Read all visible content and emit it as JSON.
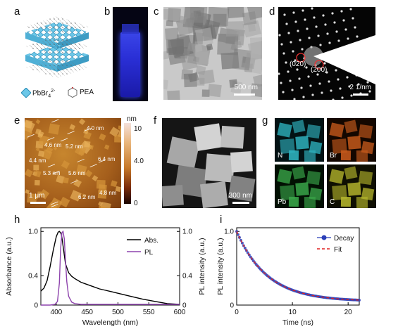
{
  "panels": {
    "a": {
      "letter": "a",
      "legend": [
        {
          "text": "PbBr",
          "sub": "4",
          "sup": "2-"
        },
        {
          "text": "PEA"
        }
      ]
    },
    "b": {
      "letter": "b"
    },
    "c": {
      "letter": "c",
      "scale_bar": "500 nm"
    },
    "d": {
      "letter": "d",
      "spots": [
        "(020)",
        "(200)"
      ],
      "scale_bar": "2 1/nm"
    },
    "e": {
      "letter": "e",
      "unit": "nm",
      "colorbar_ticks": [
        "10",
        "4.0",
        "0"
      ],
      "scale_bar": "1 μm",
      "thickness_labels": [
        "4.0 nm",
        "4.6 nm",
        "5.2 nm",
        "6.4 nm",
        "4.4 nm",
        "5.3 nm",
        "5.6 nm",
        "4.8 nm",
        "6.2 nm"
      ]
    },
    "f": {
      "letter": "f",
      "scale_bar": "300 nm"
    },
    "g": {
      "letter": "g",
      "elements": [
        "N",
        "Br",
        "Pb",
        "C"
      ],
      "colors": {
        "N": "#2fb3c0",
        "Br": "#c75a1b",
        "Pb": "#3aa84a",
        "C": "#b4b52c"
      }
    },
    "h": {
      "letter": "h"
    },
    "i": {
      "letter": "i"
    }
  },
  "chart_data": [
    {
      "type": "line",
      "panel": "h",
      "xlabel": "Wavelength (nm)",
      "ylabel": "Absorbance (a.u.)",
      "y2label": "PL intensity (a.u.)",
      "xlim": [
        375,
        600
      ],
      "ylim": [
        0,
        1.05
      ],
      "xticks": [
        400,
        450,
        500,
        550,
        600
      ],
      "yticks": [
        0,
        0.4,
        1.0
      ],
      "y2ticks": [
        0,
        0.4,
        1.0
      ],
      "legend_position": "top-right",
      "series": [
        {
          "name": "Abs.",
          "color": "#000000",
          "x": [
            375,
            380,
            385,
            390,
            395,
            400,
            403,
            405,
            408,
            410,
            413,
            415,
            420,
            425,
            430,
            440,
            450,
            460,
            470,
            480,
            490,
            500,
            520,
            540,
            560,
            580,
            600
          ],
          "y": [
            0.19,
            0.23,
            0.33,
            0.52,
            0.74,
            0.93,
            0.99,
            1.0,
            0.97,
            0.87,
            0.68,
            0.56,
            0.44,
            0.39,
            0.36,
            0.31,
            0.28,
            0.25,
            0.22,
            0.2,
            0.18,
            0.16,
            0.12,
            0.08,
            0.05,
            0.02,
            0.01
          ]
        },
        {
          "name": "PL",
          "color": "#8e44ad",
          "x": [
            375,
            390,
            398,
            402,
            405,
            407,
            409,
            411,
            413,
            415,
            417,
            420,
            425,
            430,
            440,
            460,
            500,
            550,
            600
          ],
          "y": [
            0,
            0,
            0.01,
            0.05,
            0.3,
            0.75,
            0.98,
            1.0,
            0.9,
            0.6,
            0.32,
            0.12,
            0.04,
            0.02,
            0.01,
            0.01,
            0.01,
            0.01,
            0.01
          ]
        }
      ]
    },
    {
      "type": "scatter",
      "panel": "i",
      "xlabel": "Time (ns)",
      "ylabel": "PL intensity (a.u.)",
      "xlim": [
        0,
        22
      ],
      "ylim": [
        0,
        1.05
      ],
      "xticks": [
        0,
        10,
        20
      ],
      "yticks": [
        0,
        1.0
      ],
      "legend_position": "top-right",
      "decay_tau_ns": 5.5,
      "fit_tau_ns": 5.5,
      "series": [
        {
          "name": "Decay",
          "color": "#2b3fb8",
          "marker": "circle"
        },
        {
          "name": "Fit",
          "color": "#e02020",
          "style": "dashed"
        }
      ]
    }
  ]
}
